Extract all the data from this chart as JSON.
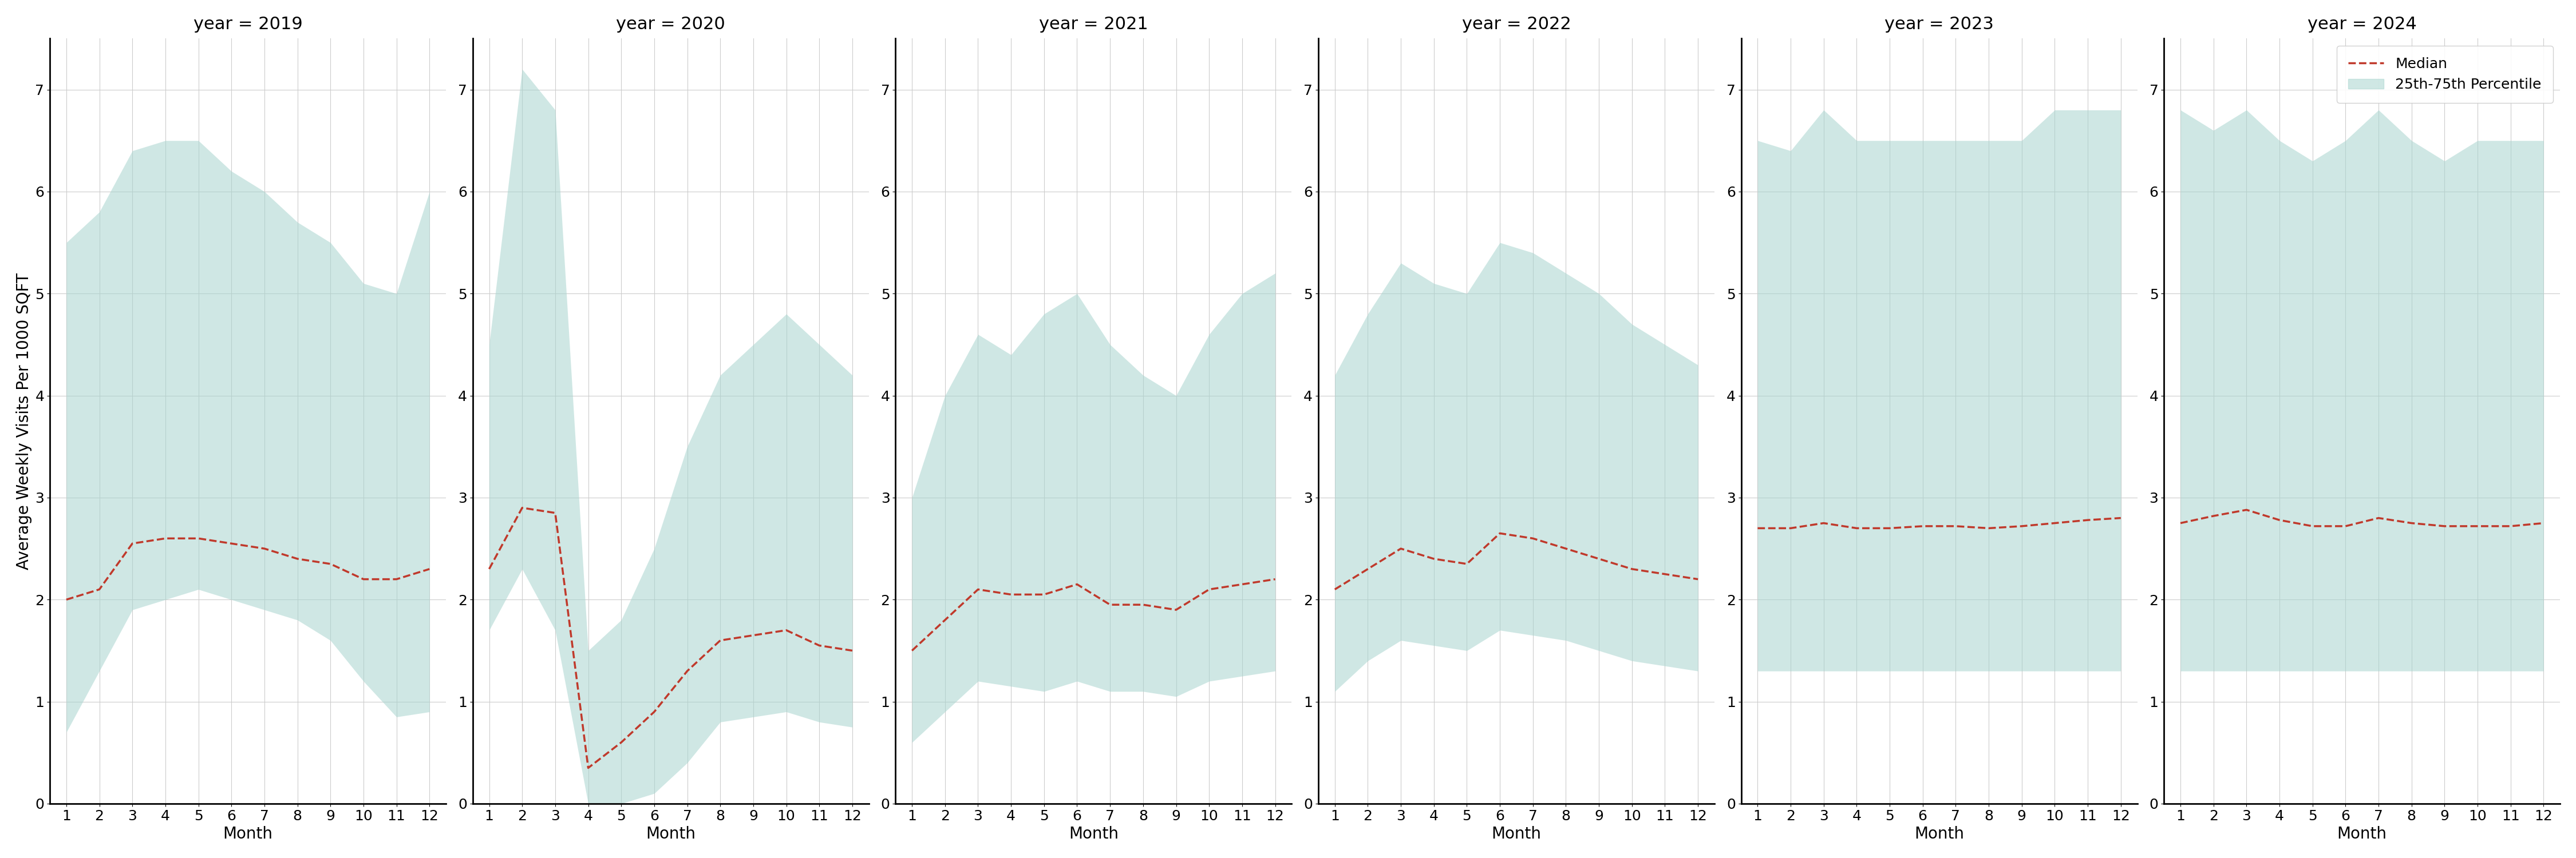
{
  "years": [
    2019,
    2020,
    2021,
    2022,
    2023,
    2024
  ],
  "months": [
    1,
    2,
    3,
    4,
    5,
    6,
    7,
    8,
    9,
    10,
    11,
    12
  ],
  "median": {
    "2019": [
      2.0,
      2.1,
      2.55,
      2.6,
      2.6,
      2.55,
      2.5,
      2.4,
      2.35,
      2.2,
      2.2,
      2.3
    ],
    "2020": [
      2.3,
      2.9,
      2.85,
      0.35,
      0.6,
      0.9,
      1.3,
      1.6,
      1.65,
      1.7,
      1.55,
      1.5
    ],
    "2021": [
      1.5,
      1.8,
      2.1,
      2.05,
      2.05,
      2.15,
      1.95,
      1.95,
      1.9,
      2.1,
      2.15,
      2.2
    ],
    "2022": [
      2.1,
      2.3,
      2.5,
      2.4,
      2.35,
      2.65,
      2.6,
      2.5,
      2.4,
      2.3,
      2.25,
      2.2
    ],
    "2023": [
      2.7,
      2.7,
      2.75,
      2.7,
      2.7,
      2.72,
      2.72,
      2.7,
      2.72,
      2.75,
      2.78,
      2.8
    ],
    "2024": [
      2.75,
      2.82,
      2.88,
      2.78,
      2.72,
      2.72,
      2.8,
      2.75,
      2.72,
      2.72,
      2.72,
      2.75
    ]
  },
  "p25": {
    "2019": [
      0.7,
      1.3,
      1.9,
      2.0,
      2.1,
      2.0,
      1.9,
      1.8,
      1.6,
      1.2,
      0.85,
      0.9
    ],
    "2020": [
      1.7,
      2.3,
      1.7,
      0.0,
      0.0,
      0.1,
      0.4,
      0.8,
      0.85,
      0.9,
      0.8,
      0.75
    ],
    "2021": [
      0.6,
      0.9,
      1.2,
      1.15,
      1.1,
      1.2,
      1.1,
      1.1,
      1.05,
      1.2,
      1.25,
      1.3
    ],
    "2022": [
      1.1,
      1.4,
      1.6,
      1.55,
      1.5,
      1.7,
      1.65,
      1.6,
      1.5,
      1.4,
      1.35,
      1.3
    ],
    "2023": [
      1.3,
      1.3,
      1.3,
      1.3,
      1.3,
      1.3,
      1.3,
      1.3,
      1.3,
      1.3,
      1.3,
      1.3
    ],
    "2024": [
      1.3,
      1.3,
      1.3,
      1.3,
      1.3,
      1.3,
      1.3,
      1.3,
      1.3,
      1.3,
      1.3,
      1.3
    ]
  },
  "p75": {
    "2019": [
      5.5,
      5.8,
      6.4,
      6.5,
      6.5,
      6.2,
      6.0,
      5.7,
      5.5,
      5.1,
      5.0,
      6.0
    ],
    "2020": [
      4.5,
      7.2,
      6.8,
      1.5,
      1.8,
      2.5,
      3.5,
      4.2,
      4.5,
      4.8,
      4.5,
      4.2
    ],
    "2021": [
      3.0,
      4.0,
      4.6,
      4.4,
      4.8,
      5.0,
      4.5,
      4.2,
      4.0,
      4.6,
      5.0,
      5.2
    ],
    "2022": [
      4.2,
      4.8,
      5.3,
      5.1,
      5.0,
      5.5,
      5.4,
      5.2,
      5.0,
      4.7,
      4.5,
      4.3
    ],
    "2023": [
      6.5,
      6.4,
      6.8,
      6.5,
      6.5,
      6.5,
      6.5,
      6.5,
      6.5,
      6.8,
      6.8,
      6.8
    ],
    "2024": [
      6.8,
      6.6,
      6.8,
      6.5,
      6.3,
      6.5,
      6.8,
      6.5,
      6.3,
      6.5,
      6.5,
      6.5
    ]
  },
  "fill_color": "#a8d5cf",
  "fill_alpha": 0.55,
  "line_color": "#c0392b",
  "line_style": "--",
  "line_width": 2.5,
  "ylabel": "Average Weekly Visits Per 1000 SQFT",
  "xlabel": "Month",
  "ylim": [
    0,
    7.5
  ],
  "yticks": [
    0,
    1,
    2,
    3,
    4,
    5,
    6,
    7
  ],
  "xticks": [
    1,
    2,
    3,
    4,
    5,
    6,
    7,
    8,
    9,
    10,
    11,
    12
  ],
  "legend_median_label": "Median",
  "legend_fill_label": "25th-75th Percentile",
  "background_color": "#ffffff",
  "grid_color": "#cccccc",
  "title_fontsize": 22,
  "label_fontsize": 20,
  "tick_fontsize": 18,
  "legend_fontsize": 18
}
